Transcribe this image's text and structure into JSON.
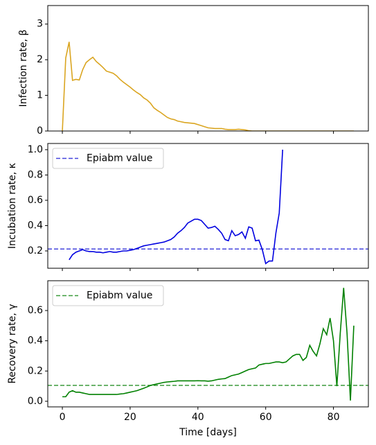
{
  "chart_data": [
    {
      "type": "line",
      "ylabel": "Infection rate, β",
      "x": [
        0,
        1,
        2,
        3,
        4,
        5,
        6,
        7,
        8,
        9,
        10,
        11,
        12,
        13,
        14,
        15,
        16,
        17,
        18,
        19,
        20,
        21,
        22,
        23,
        24,
        25,
        26,
        27,
        28,
        29,
        30,
        31,
        32,
        33,
        34,
        35,
        36,
        37,
        38,
        39,
        40,
        41,
        42,
        43,
        44,
        45,
        46,
        47,
        48,
        49,
        50,
        51,
        52,
        53,
        54,
        55,
        56,
        57,
        58,
        59,
        60,
        61,
        62,
        63,
        64,
        65,
        66,
        67,
        68,
        69,
        70,
        71,
        72,
        73,
        74,
        75,
        76,
        77,
        78,
        79,
        80,
        81,
        82,
        83,
        84,
        85,
        86
      ],
      "series": [
        {
          "color": "#daa520",
          "values": [
            0,
            2.05,
            2.5,
            1.42,
            1.45,
            1.43,
            1.72,
            1.92,
            2.0,
            2.07,
            1.95,
            1.87,
            1.78,
            1.68,
            1.65,
            1.62,
            1.55,
            1.45,
            1.37,
            1.3,
            1.23,
            1.15,
            1.08,
            1.02,
            0.93,
            0.87,
            0.78,
            0.65,
            0.58,
            0.52,
            0.45,
            0.38,
            0.34,
            0.32,
            0.28,
            0.26,
            0.24,
            0.23,
            0.22,
            0.21,
            0.18,
            0.15,
            0.12,
            0.09,
            0.08,
            0.07,
            0.07,
            0.07,
            0.05,
            0.04,
            0.04,
            0.04,
            0.05,
            0.04,
            0.03,
            0.01,
            0,
            0,
            0,
            0,
            0,
            0,
            0,
            0,
            0,
            0,
            0,
            0,
            0,
            0,
            0,
            0,
            0,
            0,
            0,
            0,
            0,
            0,
            0,
            0,
            0,
            0,
            0,
            0,
            0,
            0,
            0
          ]
        }
      ],
      "xlim": [
        -4.3,
        90.3
      ],
      "xticks": [
        0,
        20,
        40,
        60,
        80
      ],
      "xtick_labels": false,
      "ylim": [
        0,
        3.52
      ],
      "yticks": [
        0,
        1,
        2,
        3
      ]
    },
    {
      "type": "line",
      "ylabel": "Incubation rate, κ",
      "x": [
        2,
        3,
        4,
        5,
        6,
        7,
        8,
        9,
        10,
        11,
        12,
        13,
        14,
        15,
        16,
        17,
        18,
        19,
        20,
        21,
        22,
        23,
        24,
        25,
        26,
        27,
        28,
        29,
        30,
        31,
        32,
        33,
        34,
        35,
        36,
        37,
        38,
        39,
        40,
        41,
        42,
        43,
        44,
        45,
        46,
        47,
        48,
        49,
        50,
        51,
        52,
        53,
        54,
        55,
        56,
        57,
        58,
        59,
        60,
        61,
        62,
        63,
        64,
        65
      ],
      "series": [
        {
          "color": "#0000e0",
          "values": [
            0.13,
            0.17,
            0.19,
            0.2,
            0.21,
            0.2,
            0.195,
            0.195,
            0.19,
            0.19,
            0.185,
            0.19,
            0.195,
            0.19,
            0.19,
            0.195,
            0.2,
            0.2,
            0.205,
            0.21,
            0.22,
            0.23,
            0.24,
            0.245,
            0.25,
            0.255,
            0.26,
            0.265,
            0.27,
            0.28,
            0.29,
            0.31,
            0.34,
            0.36,
            0.385,
            0.42,
            0.435,
            0.45,
            0.45,
            0.44,
            0.41,
            0.38,
            0.385,
            0.395,
            0.37,
            0.34,
            0.29,
            0.28,
            0.36,
            0.32,
            0.33,
            0.35,
            0.3,
            0.39,
            0.38,
            0.28,
            0.285,
            0.21,
            0.1,
            0.12,
            0.12,
            0.34,
            0.5,
            1.0
          ]
        }
      ],
      "reference_lines": [
        {
          "name": "Epiabm value",
          "value": 0.215,
          "color": "#4444dd",
          "style": "dashed"
        }
      ],
      "legend": "upper left",
      "xlim": [
        -4.3,
        90.3
      ],
      "xticks": [
        0,
        20,
        40,
        60,
        80
      ],
      "xtick_labels": false,
      "ylim": [
        0.063,
        1.049
      ],
      "yticks": [
        0.2,
        0.4,
        0.6,
        0.8,
        {
          "value": 1,
          "label": "1.0"
        }
      ]
    },
    {
      "type": "line",
      "ylabel": "Recovery rate, γ",
      "xlabel": "Time [days]",
      "x": [
        0,
        1,
        2,
        3,
        4,
        5,
        6,
        7,
        8,
        9,
        10,
        11,
        12,
        13,
        14,
        15,
        16,
        17,
        18,
        19,
        20,
        21,
        22,
        23,
        24,
        25,
        26,
        27,
        28,
        29,
        30,
        31,
        32,
        33,
        34,
        35,
        36,
        37,
        38,
        39,
        40,
        41,
        42,
        43,
        44,
        45,
        46,
        47,
        48,
        49,
        50,
        51,
        52,
        53,
        54,
        55,
        56,
        57,
        58,
        59,
        60,
        61,
        62,
        63,
        64,
        65,
        66,
        67,
        68,
        69,
        70,
        71,
        72,
        73,
        74,
        75,
        76,
        77,
        78,
        79,
        80,
        81,
        82,
        83,
        84,
        85,
        86
      ],
      "series": [
        {
          "color": "#008000",
          "values": [
            0.03,
            0.03,
            0.06,
            0.07,
            0.06,
            0.06,
            0.055,
            0.05,
            0.045,
            0.045,
            0.045,
            0.045,
            0.045,
            0.045,
            0.045,
            0.045,
            0.045,
            0.048,
            0.05,
            0.055,
            0.06,
            0.065,
            0.07,
            0.078,
            0.086,
            0.095,
            0.105,
            0.11,
            0.115,
            0.12,
            0.125,
            0.128,
            0.13,
            0.132,
            0.135,
            0.135,
            0.135,
            0.135,
            0.135,
            0.135,
            0.136,
            0.135,
            0.135,
            0.133,
            0.135,
            0.14,
            0.145,
            0.148,
            0.15,
            0.16,
            0.17,
            0.175,
            0.18,
            0.19,
            0.2,
            0.21,
            0.215,
            0.22,
            0.24,
            0.245,
            0.25,
            0.25,
            0.255,
            0.26,
            0.26,
            0.255,
            0.26,
            0.28,
            0.3,
            0.31,
            0.31,
            0.27,
            0.29,
            0.37,
            0.33,
            0.3,
            0.38,
            0.48,
            0.44,
            0.55,
            0.4,
            0.1,
            0.45,
            0.75,
            0.45,
            0.005,
            0.5
          ]
        }
      ],
      "reference_lines": [
        {
          "name": "Epiabm value",
          "value": 0.105,
          "color": "#3a9a3a",
          "style": "dashed"
        }
      ],
      "legend": "upper left",
      "xlim": [
        -4.3,
        90.3
      ],
      "xticks": [
        0,
        20,
        40,
        60,
        80
      ],
      "xtick_labels": true,
      "ylim": [
        -0.037,
        0.797
      ],
      "yticks": [
        {
          "value": 0,
          "label": "0.0"
        },
        0.2,
        0.4,
        0.6
      ]
    }
  ]
}
